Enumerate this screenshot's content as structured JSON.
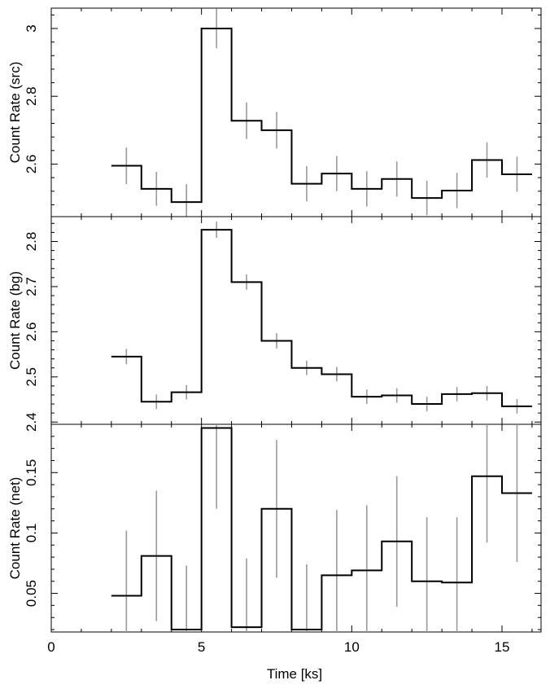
{
  "chart_data": {
    "type": "line",
    "subtype": "step-with-errorbars",
    "xlabel": "Time [ks]",
    "x_ticks": [
      "0",
      "5",
      "10",
      "15"
    ],
    "xlim": [
      0,
      16.3
    ],
    "bins": [
      [
        2,
        3
      ],
      [
        3,
        4
      ],
      [
        4,
        5
      ],
      [
        5,
        6
      ],
      [
        6,
        7
      ],
      [
        7,
        8
      ],
      [
        8,
        9
      ],
      [
        9,
        10
      ],
      [
        10,
        11
      ],
      [
        11,
        12
      ],
      [
        12,
        13
      ],
      [
        13,
        14
      ],
      [
        14,
        15
      ],
      [
        15,
        16
      ]
    ],
    "x_centers": [
      2.5,
      3.5,
      4.5,
      5.5,
      6.5,
      7.5,
      8.5,
      9.5,
      10.5,
      11.5,
      12.5,
      13.5,
      14.5,
      15.5
    ],
    "colors": {
      "step": "#000000",
      "errorbar": "#9a9a9a"
    },
    "panels": [
      {
        "id": "src",
        "ylabel": "Count Rate (src)",
        "ylim": [
          2.445,
          3.06
        ],
        "y_ticks": [
          "2.6",
          "2.8",
          "3"
        ],
        "y_tick_values": [
          2.6,
          2.8,
          3.0
        ],
        "values": [
          2.595,
          2.527,
          2.488,
          3.0,
          2.728,
          2.7,
          2.542,
          2.572,
          2.527,
          2.556,
          2.5,
          2.522,
          2.612,
          2.57
        ],
        "errors": [
          0.054,
          0.05,
          0.053,
          0.058,
          0.054,
          0.054,
          0.052,
          0.052,
          0.052,
          0.052,
          0.051,
          0.052,
          0.052,
          0.052
        ]
      },
      {
        "id": "bg",
        "ylabel": "Count Rate (bg)",
        "ylim": [
          2.395,
          2.855
        ],
        "y_ticks": [
          "2.4",
          "2.5",
          "2.6",
          "2.7",
          "2.8"
        ],
        "y_tick_values": [
          2.4,
          2.5,
          2.6,
          2.7,
          2.8
        ],
        "values": [
          2.545,
          2.445,
          2.466,
          2.826,
          2.71,
          2.58,
          2.52,
          2.506,
          2.456,
          2.459,
          2.44,
          2.462,
          2.464,
          2.435
        ],
        "errors": [
          0.017,
          0.016,
          0.016,
          0.018,
          0.017,
          0.017,
          0.016,
          0.016,
          0.016,
          0.016,
          0.016,
          0.016,
          0.016,
          0.016
        ]
      },
      {
        "id": "net",
        "ylabel": "Count Rate (net)",
        "ylim": [
          0.018,
          0.19
        ],
        "y_ticks": [
          "0.05",
          "0.1",
          "0.15"
        ],
        "y_tick_values": [
          0.05,
          0.1,
          0.15
        ],
        "values": [
          0.048,
          0.081,
          0.02,
          0.187,
          0.022,
          0.12,
          0.02,
          0.065,
          0.069,
          0.093,
          0.06,
          0.059,
          0.147,
          0.133
        ],
        "errors": [
          0.054,
          0.054,
          0.053,
          0.067,
          0.057,
          0.057,
          0.054,
          0.054,
          0.054,
          0.054,
          0.053,
          0.054,
          0.055,
          0.057
        ]
      }
    ]
  }
}
